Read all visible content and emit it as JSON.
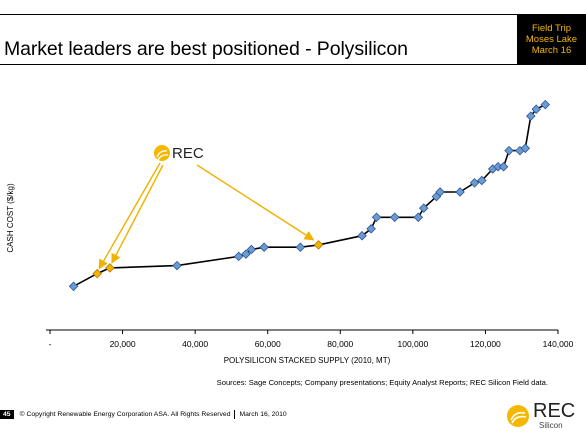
{
  "slide": {
    "title": "Market leaders are best positioned - Polysilicon",
    "event_lines": [
      "Field Trip",
      "Moses Lake",
      "March 16"
    ],
    "sources": "Sources: Sage Concepts; Company presentations; Equity Analyst Reports; REC Silicon Field data.",
    "footer": {
      "page_number": "45",
      "copyright": "© Copyright Renewable Energy Corporation ASA. All Rights Reserved",
      "date": "March 16, 2010"
    },
    "logo": {
      "name": "REC",
      "sub": "Silicon"
    }
  },
  "colors": {
    "point_fill": "#6a9bd2",
    "point_stroke": "#2f5597",
    "rec_fill": "#f5b200",
    "rec_stroke": "#b07800",
    "arrow": "#f0b100",
    "line": "#000000",
    "accent": "#f5b700"
  },
  "chart_data": {
    "type": "line",
    "xlabel": "POLYSILICON STACKED SUPPLY (2010, MT)",
    "ylabel": "CASH COST ($/kg)",
    "xlim": [
      0,
      140000
    ],
    "ylim": [
      0,
      100
    ],
    "x_ticks": [
      {
        "value": 0,
        "label": "-"
      },
      {
        "value": 20000,
        "label": "20,000"
      },
      {
        "value": 40000,
        "label": "40,000"
      },
      {
        "value": 60000,
        "label": "60,000"
      },
      {
        "value": 80000,
        "label": "80,000"
      },
      {
        "value": 100000,
        "label": "100,000"
      },
      {
        "value": 120000,
        "label": "120,000"
      },
      {
        "value": 140000,
        "label": "140,000"
      }
    ],
    "y_tick_labels_shown": false,
    "grid": false,
    "annotation": "REC",
    "series": [
      {
        "points": [
          {
            "x": 6500,
            "y": 19,
            "rec": false
          },
          {
            "x": 13000,
            "y": 24.5,
            "rec": true
          },
          {
            "x": 16500,
            "y": 27,
            "rec": true
          },
          {
            "x": 35000,
            "y": 28,
            "rec": false
          },
          {
            "x": 52000,
            "y": 32,
            "rec": false
          },
          {
            "x": 54000,
            "y": 33,
            "rec": false
          },
          {
            "x": 55500,
            "y": 35,
            "rec": false
          },
          {
            "x": 59000,
            "y": 36,
            "rec": false
          },
          {
            "x": 69000,
            "y": 36,
            "rec": false
          },
          {
            "x": 74000,
            "y": 37,
            "rec": true
          },
          {
            "x": 86000,
            "y": 41,
            "rec": false
          },
          {
            "x": 88500,
            "y": 44,
            "rec": false
          },
          {
            "x": 90000,
            "y": 49,
            "rec": false
          },
          {
            "x": 95000,
            "y": 49,
            "rec": false
          },
          {
            "x": 101500,
            "y": 49,
            "rec": false
          },
          {
            "x": 103000,
            "y": 53,
            "rec": false
          },
          {
            "x": 106500,
            "y": 58,
            "rec": false
          },
          {
            "x": 107500,
            "y": 60,
            "rec": false
          },
          {
            "x": 113000,
            "y": 60,
            "rec": false
          },
          {
            "x": 117000,
            "y": 64,
            "rec": false
          },
          {
            "x": 119000,
            "y": 65,
            "rec": false
          },
          {
            "x": 122000,
            "y": 70,
            "rec": false
          },
          {
            "x": 123500,
            "y": 71,
            "rec": false
          },
          {
            "x": 125000,
            "y": 71,
            "rec": false
          },
          {
            "x": 126500,
            "y": 78,
            "rec": false
          },
          {
            "x": 129500,
            "y": 78,
            "rec": false
          },
          {
            "x": 131000,
            "y": 79,
            "rec": false
          },
          {
            "x": 132500,
            "y": 93,
            "rec": false
          },
          {
            "x": 134000,
            "y": 96,
            "rec": false
          },
          {
            "x": 136500,
            "y": 98,
            "rec": false
          }
        ]
      }
    ]
  }
}
